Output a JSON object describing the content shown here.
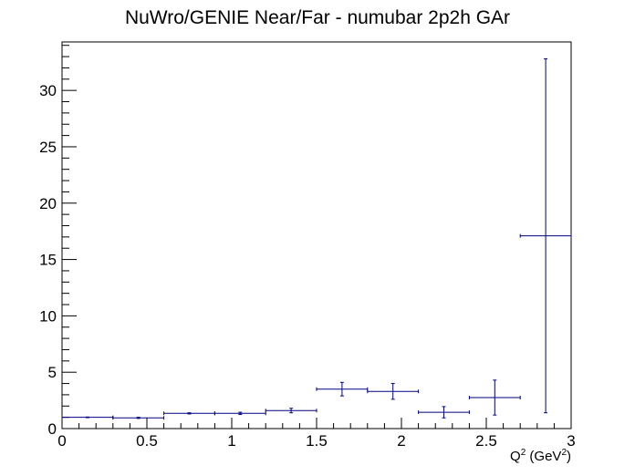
{
  "chart_data": {
    "type": "scatter",
    "title": "NuWro/GENIE Near/Far - numubar 2p2h GAr",
    "xlabel": "Q",
    "xlabel_sup": "2",
    "xlabel_unit_prefix": " (GeV",
    "xlabel_unit_sup": "2",
    "xlabel_unit_suffix": ")",
    "ylabel": "",
    "xlim": [
      0,
      3
    ],
    "ylim": [
      0,
      34.3
    ],
    "x_ticks": [
      "0",
      "0.5",
      "1",
      "1.5",
      "2",
      "2.5",
      "3"
    ],
    "y_ticks": [
      "0",
      "5",
      "10",
      "15",
      "20",
      "25",
      "30"
    ],
    "grid": false,
    "legend": "none",
    "marker_color": "#00007f",
    "points": [
      {
        "x": 0.15,
        "xerr": 0.15,
        "y": 1.0,
        "yerr": 0.03
      },
      {
        "x": 0.45,
        "xerr": 0.15,
        "y": 0.95,
        "yerr": 0.05
      },
      {
        "x": 0.75,
        "xerr": 0.15,
        "y": 1.35,
        "yerr": 0.05
      },
      {
        "x": 1.05,
        "xerr": 0.15,
        "y": 1.35,
        "yerr": 0.1
      },
      {
        "x": 1.35,
        "xerr": 0.15,
        "y": 1.6,
        "yerr": 0.2
      },
      {
        "x": 1.65,
        "xerr": 0.15,
        "y": 3.5,
        "yerr": 0.6
      },
      {
        "x": 1.95,
        "xerr": 0.15,
        "y": 3.3,
        "yerr": 0.7
      },
      {
        "x": 2.25,
        "xerr": 0.15,
        "y": 1.45,
        "yerr": 0.5
      },
      {
        "x": 2.55,
        "xerr": 0.15,
        "y": 2.75,
        "yerr": 1.55
      },
      {
        "x": 2.85,
        "xerr": 0.15,
        "y": 17.1,
        "yerr": 15.7
      }
    ]
  }
}
